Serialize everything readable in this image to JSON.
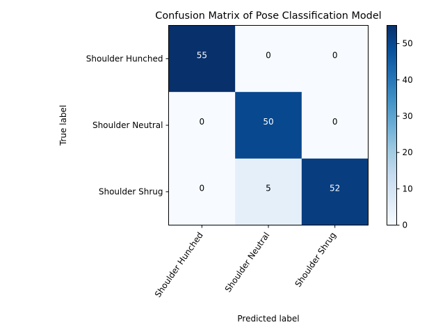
{
  "chart_data": {
    "type": "heatmap",
    "title": "Confusion Matrix of Pose Classification Model",
    "xlabel": "Predicted label",
    "ylabel": "True label",
    "x_categories": [
      "Shoulder Hunched",
      "Shoulder Neutral",
      "Shoulder Shrug"
    ],
    "y_categories": [
      "Shoulder Hunched",
      "Shoulder Neutral",
      "Shoulder Shrug"
    ],
    "matrix": [
      [
        55,
        0,
        0
      ],
      [
        0,
        50,
        0
      ],
      [
        0,
        5,
        52
      ]
    ],
    "colorbar": {
      "min": 0,
      "max": 55,
      "ticks": [
        0,
        10,
        20,
        30,
        40,
        50
      ],
      "colormap": "Blues"
    },
    "grid": false
  }
}
